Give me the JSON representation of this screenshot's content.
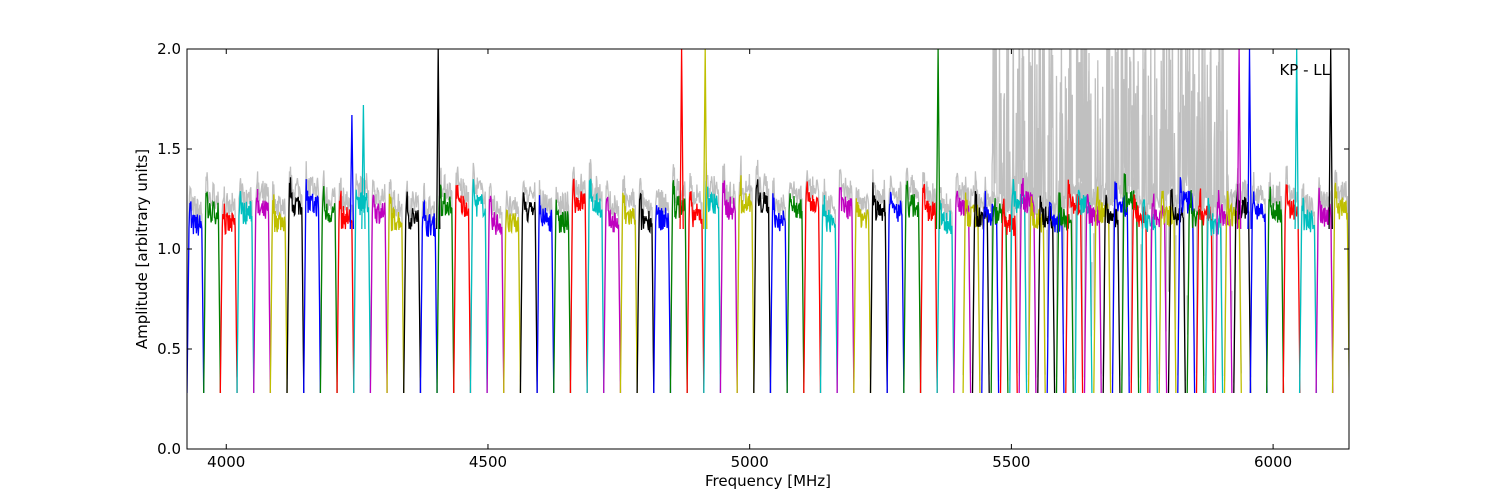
{
  "chart_data": {
    "type": "line",
    "title": "",
    "annotation": "KP - LL",
    "xlabel": "Frequency [MHz]",
    "ylabel": "Amplitude [arbitrary units]",
    "xlim": [
      3925,
      6145
    ],
    "ylim": [
      0.0,
      2.0
    ],
    "xticks": [
      4000,
      4500,
      5000,
      5500,
      6000
    ],
    "yticks": [
      0.0,
      0.5,
      1.0,
      1.5,
      2.0
    ],
    "xtick_labels": [
      "4000",
      "4500",
      "5000",
      "5500",
      "6000"
    ],
    "ytick_labels": [
      "0.0",
      "0.5",
      "1.0",
      "1.5",
      "2.0"
    ],
    "grid": false,
    "background_color": "#c0c0c0",
    "channel_color_cycle": [
      "#0000ff",
      "#008000",
      "#ff0000",
      "#00bfbf",
      "#bf00bf",
      "#bfbf00",
      "#000000"
    ],
    "channel_width_mhz": 32,
    "channels_band1": {
      "start": 3925,
      "end": 5390,
      "count": 46
    },
    "channels_band2": {
      "start": 5390,
      "end": 5925,
      "count": 30
    },
    "channels_band3": {
      "start": 5925,
      "end": 6145,
      "count": 7
    },
    "spikes": [
      {
        "x": 4240,
        "y": 1.67
      },
      {
        "x": 4262,
        "y": 1.72
      },
      {
        "x": 4405,
        "y": 2.0
      },
      {
        "x": 4870,
        "y": 2.0
      },
      {
        "x": 4915,
        "y": 2.0
      },
      {
        "x": 5360,
        "y": 2.0
      },
      {
        "x": 5935,
        "y": 2.0
      },
      {
        "x": 5955,
        "y": 2.0
      },
      {
        "x": 6045,
        "y": 2.0
      },
      {
        "x": 6110,
        "y": 2.0
      }
    ]
  }
}
